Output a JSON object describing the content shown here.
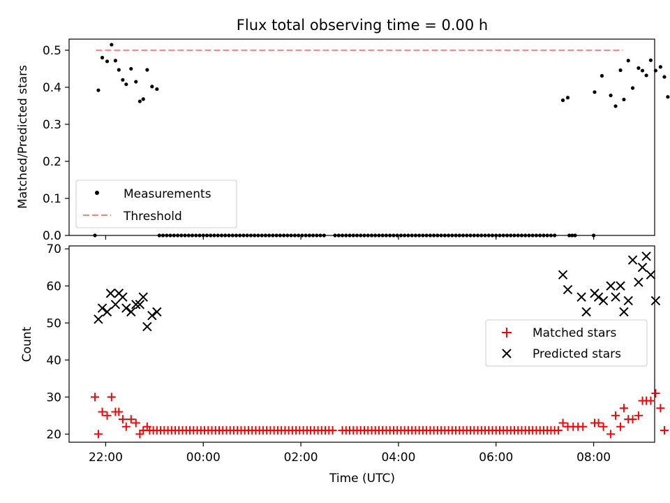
{
  "title": "Flux total observing time = 0.00 h",
  "colors": {
    "measurements": "#000000",
    "threshold": "#ff7f7f",
    "matched": "#ff0000",
    "predicted": "#000000"
  },
  "chart_data": [
    {
      "type": "scatter",
      "ylabel": "Matched/Predicted stars",
      "xlim": [
        -0.75,
        11.25
      ],
      "ylim": [
        0.0,
        0.53
      ],
      "yticks": [
        "0.0",
        "0.1",
        "0.2",
        "0.3",
        "0.4",
        "0.5"
      ],
      "ytick_values": [
        0.0,
        0.1,
        0.2,
        0.3,
        0.4,
        0.5
      ],
      "legend": {
        "position": "lower-left",
        "entries": [
          "Measurements",
          "Threshold"
        ]
      },
      "threshold": {
        "name": "Threshold",
        "y": 0.5,
        "x_range": [
          -0.2,
          10.6
        ]
      },
      "series": [
        {
          "name": "Measurements",
          "marker": "dot",
          "points": [
            [
              -0.22,
              0.0
            ],
            [
              -0.15,
              0.392
            ],
            [
              -0.07,
              0.48
            ],
            [
              0.03,
              0.47
            ],
            [
              0.12,
              0.515
            ],
            [
              0.2,
              0.472
            ],
            [
              0.27,
              0.447
            ],
            [
              0.35,
              0.42
            ],
            [
              0.42,
              0.408
            ],
            [
              0.52,
              0.45
            ],
            [
              0.62,
              0.415
            ],
            [
              0.7,
              0.362
            ],
            [
              0.77,
              0.368
            ],
            [
              0.85,
              0.447
            ],
            [
              0.95,
              0.402
            ],
            [
              1.05,
              0.395
            ],
            [
              9.37,
              0.365
            ],
            [
              9.47,
              0.372
            ],
            [
              10.02,
              0.387
            ],
            [
              10.17,
              0.431
            ],
            [
              10.35,
              0.378
            ],
            [
              10.45,
              0.349
            ],
            [
              10.55,
              0.446
            ],
            [
              10.62,
              0.367
            ],
            [
              10.71,
              0.472
            ],
            [
              10.8,
              0.398
            ],
            [
              10.92,
              0.452
            ],
            [
              11.0,
              0.445
            ],
            [
              11.08,
              0.432
            ],
            [
              11.17,
              0.473
            ],
            [
              11.27,
              0.445
            ],
            [
              11.37,
              0.455
            ],
            [
              11.45,
              0.428
            ],
            [
              11.52,
              0.374
            ]
          ],
          "zero_runs": [
            {
              "from": 1.1,
              "to": 4.5,
              "step": 0.075
            },
            {
              "from": 4.7,
              "to": 9.2,
              "step": 0.075
            },
            {
              "from": 9.5,
              "to": 9.62,
              "step": 0.06
            }
          ],
          "zero_points": [
            10.0
          ]
        }
      ]
    },
    {
      "type": "scatter",
      "xlabel": "Time (UTC)",
      "ylabel": "Count",
      "xlim": [
        -0.75,
        11.25
      ],
      "ylim": [
        17.8,
        70.8
      ],
      "xticks": [
        "22:00",
        "00:00",
        "02:00",
        "04:00",
        "06:00",
        "08:00"
      ],
      "xtick_values": [
        0,
        2,
        4,
        6,
        8,
        10
      ],
      "yticks": [
        "20",
        "30",
        "40",
        "50",
        "60",
        "70"
      ],
      "ytick_values": [
        20,
        30,
        40,
        50,
        60,
        70
      ],
      "legend": {
        "position": "right",
        "entries": [
          "Matched stars",
          "Predicted stars"
        ]
      },
      "series": [
        {
          "name": "Matched stars",
          "marker": "plus",
          "points": [
            [
              -0.22,
              30
            ],
            [
              -0.15,
              20
            ],
            [
              -0.07,
              26
            ],
            [
              0.03,
              25
            ],
            [
              0.12,
              30
            ],
            [
              0.2,
              26
            ],
            [
              0.27,
              26
            ],
            [
              0.35,
              24
            ],
            [
              0.42,
              22
            ],
            [
              0.52,
              24
            ],
            [
              0.62,
              23
            ],
            [
              0.7,
              20
            ],
            [
              0.77,
              21
            ],
            [
              0.85,
              22
            ],
            [
              9.37,
              23
            ],
            [
              9.47,
              22
            ],
            [
              9.58,
              22
            ],
            [
              9.68,
              22
            ],
            [
              9.78,
              22
            ],
            [
              10.02,
              23
            ],
            [
              10.1,
              23
            ],
            [
              10.2,
              22
            ],
            [
              10.35,
              20
            ],
            [
              10.45,
              25
            ],
            [
              10.55,
              22
            ],
            [
              10.62,
              27
            ],
            [
              10.71,
              24
            ],
            [
              10.8,
              24
            ],
            [
              10.92,
              25
            ],
            [
              11.0,
              29
            ],
            [
              11.08,
              29
            ],
            [
              11.17,
              29
            ],
            [
              11.27,
              31
            ],
            [
              11.37,
              27
            ],
            [
              11.45,
              21
            ]
          ],
          "constant_runs": [
            {
              "from": 0.9,
              "to": 4.7,
              "step": 0.075,
              "y": 21
            },
            {
              "from": 4.85,
              "to": 9.3,
              "step": 0.075,
              "y": 21
            }
          ]
        },
        {
          "name": "Predicted stars",
          "marker": "x",
          "points": [
            [
              -0.15,
              51
            ],
            [
              -0.07,
              54
            ],
            [
              0.1,
              58
            ],
            [
              0.03,
              53
            ],
            [
              0.2,
              55
            ],
            [
              0.27,
              58
            ],
            [
              0.35,
              57
            ],
            [
              0.42,
              54
            ],
            [
              0.52,
              53
            ],
            [
              0.62,
              55
            ],
            [
              0.7,
              55
            ],
            [
              0.77,
              57
            ],
            [
              0.85,
              49
            ],
            [
              0.95,
              52
            ],
            [
              1.05,
              53
            ],
            [
              9.37,
              63
            ],
            [
              9.47,
              59
            ],
            [
              9.75,
              57
            ],
            [
              9.85,
              53
            ],
            [
              10.02,
              58
            ],
            [
              10.1,
              57
            ],
            [
              10.2,
              56
            ],
            [
              10.35,
              60
            ],
            [
              10.45,
              57
            ],
            [
              10.55,
              60
            ],
            [
              10.62,
              53
            ],
            [
              10.71,
              56
            ],
            [
              10.8,
              67
            ],
            [
              10.92,
              61
            ],
            [
              11.0,
              65
            ],
            [
              11.08,
              68
            ],
            [
              11.17,
              63
            ],
            [
              11.27,
              56
            ]
          ]
        }
      ]
    }
  ]
}
